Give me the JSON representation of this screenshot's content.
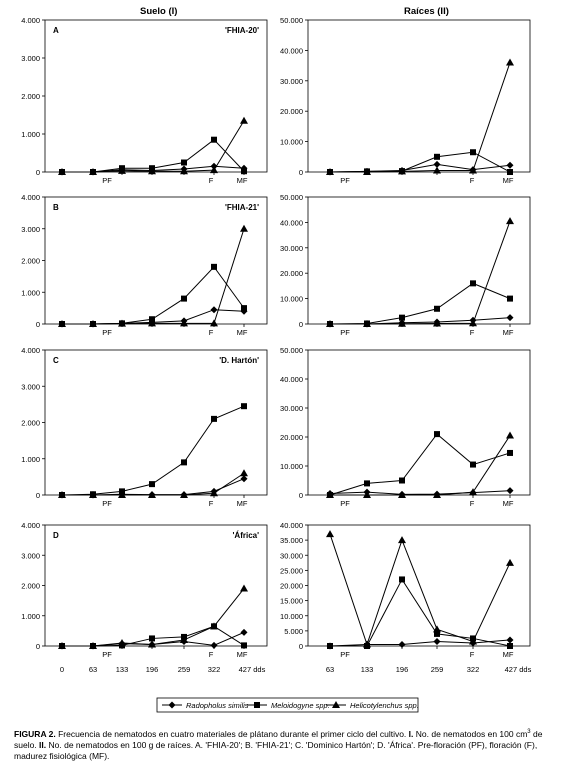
{
  "column_titles": [
    "Suelo (I)",
    "Raíces (II)"
  ],
  "legend": {
    "items": [
      {
        "label": "Radopholus similis",
        "marker": "diamond"
      },
      {
        "label": "Meloidogyne spp.",
        "marker": "square"
      },
      {
        "label": "Helicotylenchus spp.",
        "marker": "triangle"
      }
    ]
  },
  "caption": {
    "label": "FIGURA 2.",
    "text_1": " Frecuencia de nematodos en cuatro materiales de plátano durante el primer ciclo del cultivo. ",
    "bold_2": "I.",
    "text_2": " No. de nematodos en 100 cm",
    "sup": "3",
    "text_3": " de suelo. ",
    "bold_3": "II.",
    "text_4": " No. de nematodos en 100 g de raíces. A. 'FHIA-20'; B. 'FHIA-21'; C. 'Dominico Hartón'; D. 'África'. Pre-floración (PF), floración (F), madurez fisiológica (MF)."
  },
  "chart_data": [
    {
      "type": "line",
      "panel_letter": "A",
      "cultivar": "'FHIA-20'",
      "column": "Suelo (I)",
      "x": [
        0,
        63,
        133,
        196,
        259,
        322,
        427
      ],
      "ylim": [
        0,
        4000
      ],
      "yticks": [
        "0",
        "1.000",
        "2.000",
        "3.000",
        "4.000"
      ],
      "stage_labels": [
        "PF",
        "F",
        "MF"
      ],
      "x_tick_labels": [],
      "series": [
        {
          "name": "Radopholus similis",
          "values": [
            0,
            0,
            60,
            40,
            80,
            150,
            100
          ]
        },
        {
          "name": "Meloidogyne spp.",
          "values": [
            0,
            0,
            100,
            100,
            250,
            850,
            20
          ]
        },
        {
          "name": "Helicotylenchus spp.",
          "values": [
            0,
            0,
            30,
            20,
            20,
            50,
            1350
          ]
        }
      ]
    },
    {
      "type": "line",
      "panel_letter": "",
      "cultivar": "",
      "column": "Raíces (II)",
      "x": [
        63,
        133,
        196,
        259,
        322,
        427
      ],
      "ylim": [
        0,
        50000
      ],
      "yticks": [
        "0",
        "10.000",
        "20.000",
        "30.000",
        "40.000",
        "50.000"
      ],
      "stage_labels": [
        "PF",
        "F",
        "MF"
      ],
      "x_tick_labels": [],
      "series": [
        {
          "name": "Radopholus similis",
          "values": [
            0,
            200,
            500,
            2500,
            800,
            2200
          ]
        },
        {
          "name": "Meloidogyne spp.",
          "values": [
            0,
            200,
            300,
            5000,
            6500,
            0
          ]
        },
        {
          "name": "Helicotylenchus spp.",
          "values": [
            0,
            0,
            200,
            500,
            500,
            36000
          ]
        }
      ]
    },
    {
      "type": "line",
      "panel_letter": "B",
      "cultivar": "'FHIA-21'",
      "column": "Suelo (I)",
      "x": [
        0,
        63,
        133,
        196,
        259,
        322,
        427
      ],
      "ylim": [
        0,
        4000
      ],
      "yticks": [
        "0",
        "1.000",
        "2.000",
        "3.000",
        "4.000"
      ],
      "stage_labels": [
        "PF",
        "F",
        "MF"
      ],
      "x_tick_labels": [],
      "series": [
        {
          "name": "Radopholus similis",
          "values": [
            0,
            0,
            20,
            50,
            100,
            450,
            400
          ]
        },
        {
          "name": "Meloidogyne spp.",
          "values": [
            0,
            0,
            20,
            150,
            800,
            1800,
            500
          ]
        },
        {
          "name": "Helicotylenchus spp.",
          "values": [
            0,
            0,
            10,
            20,
            20,
            20,
            3000
          ]
        }
      ]
    },
    {
      "type": "line",
      "panel_letter": "",
      "cultivar": "",
      "column": "Raíces (II)",
      "x": [
        63,
        133,
        196,
        259,
        322,
        427
      ],
      "ylim": [
        0,
        50000
      ],
      "yticks": [
        "0",
        "10.000",
        "20.000",
        "30.000",
        "40.000",
        "50.000"
      ],
      "stage_labels": [
        "PF",
        "F",
        "MF"
      ],
      "x_tick_labels": [],
      "series": [
        {
          "name": "Radopholus similis",
          "values": [
            0,
            0,
            500,
            800,
            1500,
            2500
          ]
        },
        {
          "name": "Meloidogyne spp.",
          "values": [
            0,
            200,
            2500,
            6000,
            16000,
            10000
          ]
        },
        {
          "name": "Helicotylenchus spp.",
          "values": [
            0,
            0,
            100,
            200,
            300,
            40500
          ]
        }
      ]
    },
    {
      "type": "line",
      "panel_letter": "C",
      "cultivar": "'D. Hartón'",
      "column": "Suelo (I)",
      "x": [
        0,
        63,
        133,
        196,
        259,
        322,
        427
      ],
      "ylim": [
        0,
        4000
      ],
      "yticks": [
        "0",
        "1.000",
        "2.000",
        "3.000",
        "4.000"
      ],
      "stage_labels": [
        "PF",
        "F",
        "MF"
      ],
      "x_tick_labels": [],
      "series": [
        {
          "name": "Radopholus similis",
          "values": [
            0,
            0,
            20,
            10,
            10,
            100,
            450
          ]
        },
        {
          "name": "Meloidogyne spp.",
          "values": [
            0,
            20,
            100,
            300,
            900,
            2100,
            2450
          ]
        },
        {
          "name": "Helicotylenchus spp.",
          "values": [
            0,
            0,
            0,
            0,
            0,
            50,
            600
          ]
        }
      ]
    },
    {
      "type": "line",
      "panel_letter": "",
      "cultivar": "",
      "column": "Raíces (II)",
      "x": [
        63,
        133,
        196,
        259,
        322,
        427
      ],
      "ylim": [
        0,
        50000
      ],
      "yticks": [
        "0",
        "10.000",
        "20.000",
        "30.000",
        "40.000",
        "50.000"
      ],
      "stage_labels": [
        "PF",
        "F",
        "MF"
      ],
      "x_tick_labels": [],
      "series": [
        {
          "name": "Radopholus similis",
          "values": [
            500,
            1000,
            200,
            300,
            800,
            1500
          ]
        },
        {
          "name": "Meloidogyne spp.",
          "values": [
            0,
            4000,
            5000,
            21000,
            10500,
            14500
          ]
        },
        {
          "name": "Helicotylenchus spp.",
          "values": [
            0,
            0,
            0,
            0,
            1000,
            20500
          ]
        }
      ]
    },
    {
      "type": "line",
      "panel_letter": "D",
      "cultivar": "'África'",
      "column": "Suelo (I)",
      "x": [
        0,
        63,
        133,
        196,
        259,
        322,
        427
      ],
      "ylim": [
        0,
        4000
      ],
      "yticks": [
        "0",
        "1.000",
        "2.000",
        "3.000",
        "4.000"
      ],
      "stage_labels": [
        "PF",
        "F",
        "MF"
      ],
      "x_tick_labels": [
        "0",
        "63",
        "133",
        "196",
        "259",
        "322",
        "427 dds"
      ],
      "series": [
        {
          "name": "Radopholus similis",
          "values": [
            0,
            0,
            80,
            50,
            150,
            20,
            450
          ]
        },
        {
          "name": "Meloidogyne spp.",
          "values": [
            0,
            0,
            20,
            250,
            300,
            650,
            20
          ]
        },
        {
          "name": "Helicotylenchus spp.",
          "values": [
            0,
            0,
            100,
            50,
            200,
            650,
            1900
          ]
        }
      ]
    },
    {
      "type": "line",
      "panel_letter": "",
      "cultivar": "",
      "column": "Raíces (II)",
      "x": [
        63,
        133,
        196,
        259,
        322,
        427
      ],
      "ylim": [
        0,
        40000
      ],
      "yticks": [
        "0",
        "5.000",
        "10.000",
        "15.000",
        "20.000",
        "25.000",
        "30.000",
        "35.000",
        "40.000"
      ],
      "stage_labels": [
        "PF",
        "F",
        "MF"
      ],
      "x_tick_labels": [
        "63",
        "133",
        "196",
        "259",
        "322",
        "427 dds"
      ],
      "series": [
        {
          "name": "Radopholus similis",
          "values": [
            0,
            500,
            500,
            1500,
            1000,
            2000
          ]
        },
        {
          "name": "Meloidogyne spp.",
          "values": [
            0,
            0,
            22000,
            4000,
            2500,
            0
          ]
        },
        {
          "name": "Helicotylenchus spp.",
          "values": [
            37000,
            500,
            35000,
            5500,
            1500,
            27500
          ]
        }
      ]
    }
  ]
}
